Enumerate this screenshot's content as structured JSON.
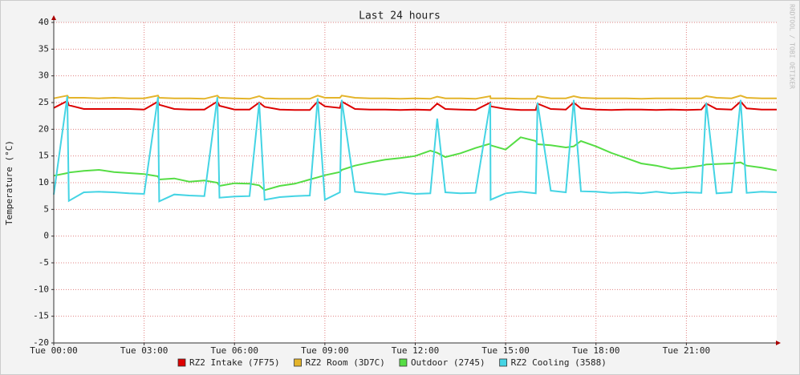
{
  "chart_data": {
    "type": "line",
    "title": "Last 24 hours",
    "side_note": "RRDTOOL / TOBI OETIKER",
    "ylabel": "Temperature (°C)",
    "x": [
      0,
      0.45,
      0.5,
      1,
      1.5,
      2,
      2.5,
      3,
      3.46,
      3.5,
      4,
      4.5,
      5,
      5.43,
      5.5,
      6,
      6.5,
      6.82,
      7,
      7.5,
      8,
      8.5,
      8.76,
      9,
      9.5,
      9.56,
      10,
      10.5,
      11,
      11.5,
      12,
      12.5,
      12.73,
      13,
      13.5,
      14,
      14.49,
      14.5,
      15,
      15.5,
      16,
      16.06,
      16.5,
      17,
      17.26,
      17.5,
      18,
      18.5,
      19,
      19.5,
      20,
      20.5,
      21,
      21.5,
      21.66,
      22,
      22.5,
      22.8,
      23,
      23.5,
      24
    ],
    "xlim": [
      0,
      24
    ],
    "xticks": [
      {
        "value": 0,
        "label": "Tue 00:00"
      },
      {
        "value": 3,
        "label": "Tue 03:00"
      },
      {
        "value": 6,
        "label": "Tue 06:00"
      },
      {
        "value": 9,
        "label": "Tue 09:00"
      },
      {
        "value": 12,
        "label": "Tue 12:00"
      },
      {
        "value": 15,
        "label": "Tue 15:00"
      },
      {
        "value": 18,
        "label": "Tue 18:00"
      },
      {
        "value": 21,
        "label": "Tue 21:00"
      }
    ],
    "ylim": [
      -20,
      40
    ],
    "yticks": [
      -20,
      -15,
      -10,
      -5,
      0,
      5,
      10,
      15,
      20,
      25,
      30,
      35,
      40
    ],
    "grid": true,
    "legend": "bottom",
    "series": [
      {
        "name": "RZ2 Intake (7F75)",
        "color": "#dd0000",
        "values": [
          24.0,
          25.3,
          24.5,
          23.8,
          23.8,
          23.8,
          23.8,
          23.7,
          25.2,
          24.6,
          23.8,
          23.7,
          23.7,
          25.2,
          24.4,
          23.7,
          23.7,
          25.0,
          24.2,
          23.7,
          23.6,
          23.6,
          25.2,
          24.3,
          24.0,
          25.2,
          23.8,
          23.7,
          23.7,
          23.6,
          23.7,
          23.6,
          24.8,
          23.8,
          23.7,
          23.6,
          25.0,
          24.3,
          23.8,
          23.6,
          23.6,
          24.8,
          23.8,
          23.7,
          25.0,
          23.9,
          23.7,
          23.6,
          23.7,
          23.7,
          23.6,
          23.7,
          23.6,
          23.7,
          24.8,
          23.8,
          23.7,
          25.2,
          23.9,
          23.7,
          23.7
        ]
      },
      {
        "name": "RZ2 Room (3D7C)",
        "color": "#e4b42a",
        "values": [
          25.8,
          26.3,
          25.9,
          25.9,
          25.8,
          25.9,
          25.8,
          25.8,
          26.3,
          25.9,
          25.8,
          25.8,
          25.7,
          26.3,
          25.9,
          25.8,
          25.7,
          26.2,
          25.8,
          25.7,
          25.7,
          25.7,
          26.3,
          25.9,
          25.9,
          26.3,
          25.9,
          25.8,
          25.8,
          25.7,
          25.8,
          25.7,
          26.1,
          25.8,
          25.8,
          25.7,
          26.2,
          25.8,
          25.8,
          25.7,
          25.7,
          26.2,
          25.8,
          25.8,
          26.2,
          25.9,
          25.8,
          25.8,
          25.8,
          25.7,
          25.8,
          25.8,
          25.8,
          25.8,
          26.2,
          25.9,
          25.8,
          26.3,
          25.9,
          25.8,
          25.8
        ]
      },
      {
        "name": "Outdoor (2745)",
        "color": "#55dd44",
        "values": [
          11.3,
          11.8,
          11.9,
          12.2,
          12.4,
          12.0,
          11.8,
          11.6,
          11.2,
          10.6,
          10.8,
          10.2,
          10.4,
          10.0,
          9.4,
          9.9,
          9.8,
          9.5,
          8.6,
          9.4,
          9.8,
          10.6,
          11.0,
          11.4,
          12.0,
          12.4,
          13.2,
          13.8,
          14.3,
          14.6,
          15.0,
          16.0,
          15.6,
          14.8,
          15.5,
          16.5,
          17.3,
          17.0,
          16.2,
          18.5,
          17.8,
          17.2,
          17.0,
          16.6,
          16.8,
          17.8,
          16.8,
          15.6,
          14.6,
          13.6,
          13.2,
          12.6,
          12.8,
          13.2,
          13.4,
          13.5,
          13.6,
          13.8,
          13.2,
          12.8,
          12.3
        ]
      },
      {
        "name": "RZ2 Cooling (3588)",
        "color": "#44d4e4",
        "values": [
          7.8,
          26.2,
          6.6,
          8.2,
          8.3,
          8.2,
          8.0,
          7.9,
          26.0,
          6.5,
          7.8,
          7.6,
          7.5,
          26.0,
          7.2,
          7.4,
          7.5,
          25.0,
          6.8,
          7.3,
          7.5,
          7.6,
          25.8,
          6.8,
          8.2,
          25.5,
          8.3,
          8.0,
          7.8,
          8.2,
          7.9,
          8.0,
          22.0,
          8.2,
          8.0,
          8.1,
          25.0,
          6.8,
          8.0,
          8.3,
          8.0,
          25.0,
          8.5,
          8.2,
          25.5,
          8.4,
          8.3,
          8.1,
          8.2,
          8.0,
          8.3,
          8.0,
          8.2,
          8.1,
          25.0,
          8.0,
          8.2,
          25.5,
          8.1,
          8.3,
          8.2
        ]
      }
    ]
  }
}
